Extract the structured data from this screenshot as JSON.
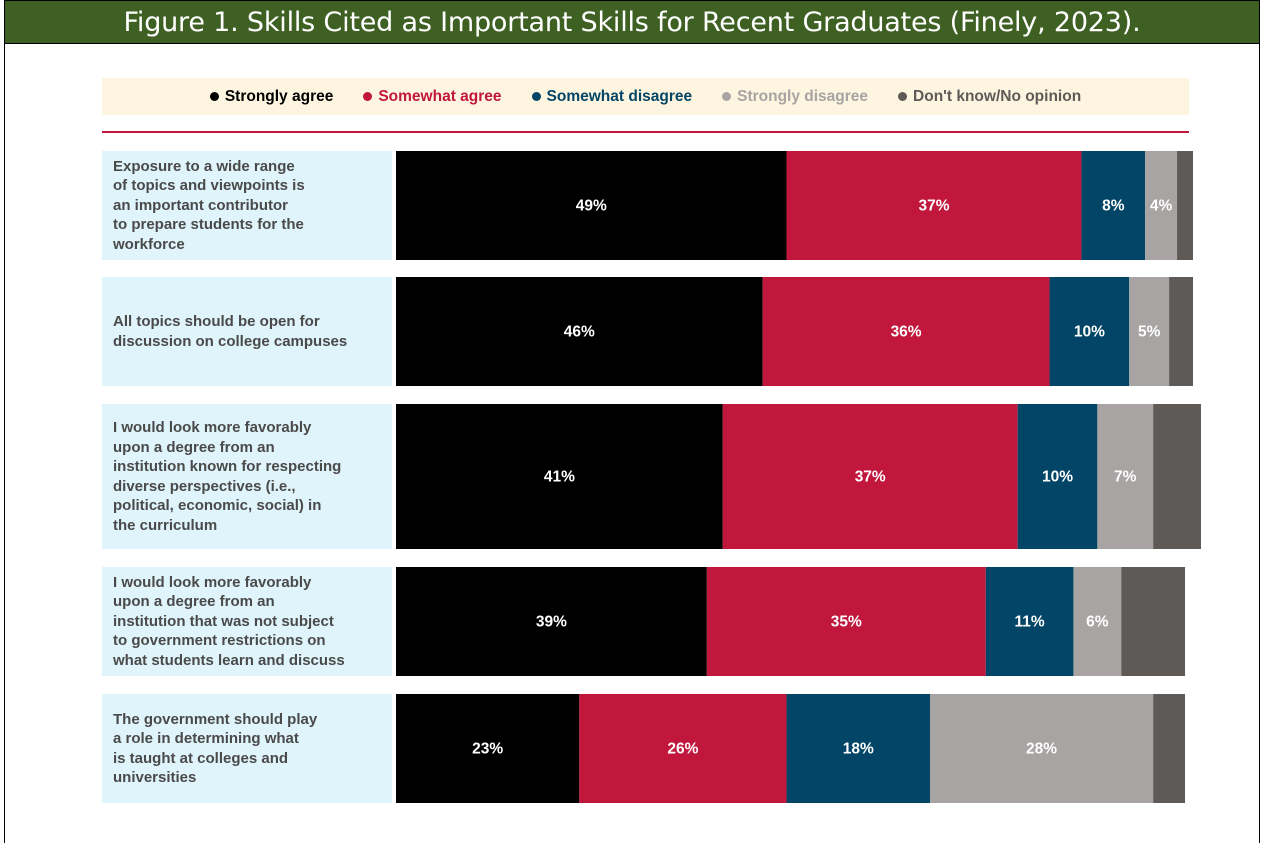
{
  "figure_title": "Figure 1.  Skills Cited as Important Skills for Recent Graduates (Finely, 2023).",
  "chart_data": {
    "type": "bar",
    "orientation": "horizontal",
    "stacked": true,
    "legend_placement": "top",
    "xlim": [
      0,
      100
    ],
    "categories": [
      "Exposure to a wide range of topics and viewpoints is an important contributor to prepare students for the workforce",
      "All topics should be open for discussion on college campuses",
      "I would look more favorably upon a degree from an institution known for respecting diverse perspectives (i.e., political, economic, social) in the curriculum",
      "I would look more favorably upon a degree from an institution that was not subject to government restrictions on what students learn and discuss",
      "The government should play a role in determining what is taught at colleges and universities"
    ],
    "category_lines": [
      [
        "Exposure to a wide range",
        "of topics and viewpoints is",
        "an important contributor",
        "to prepare students for the",
        "workforce"
      ],
      [
        "All topics should be open for",
        "discussion on college campuses"
      ],
      [
        "I would look more favorably",
        "upon a degree from an",
        "institution known for respecting",
        "diverse perspectives (i.e.,",
        "political, economic, social) in",
        "the curriculum"
      ],
      [
        "I would look more favorably",
        "upon a degree from an",
        "institution that was not subject",
        "to government restrictions on",
        "what students learn and discuss"
      ],
      [
        "The government should play",
        "a role in determining what",
        "is taught at colleges and",
        "universities"
      ]
    ],
    "series": [
      {
        "name": "Strongly agree",
        "color": "#000000",
        "label_color": "#ffffff",
        "values": [
          49,
          46,
          41,
          39,
          23
        ],
        "labels": [
          "49%",
          "46%",
          "41%",
          "39%",
          "23%"
        ]
      },
      {
        "name": "Somewhat agree",
        "color": "#c1173d",
        "label_color": "#ffffff",
        "values": [
          37,
          36,
          37,
          35,
          26
        ],
        "labels": [
          "37%",
          "36%",
          "37%",
          "35%",
          "26%"
        ]
      },
      {
        "name": "Somewhat disagree",
        "color": "#034566",
        "label_color": "#ffffff",
        "values": [
          8,
          10,
          10,
          11,
          18
        ],
        "labels": [
          "8%",
          "10%",
          "10%",
          "11%",
          "18%"
        ]
      },
      {
        "name": "Strongly disagree",
        "color": "#a7a4a3",
        "label_color": "#ffffff",
        "values": [
          4,
          5,
          7,
          6,
          28
        ],
        "labels": [
          "4%",
          "5%",
          "7%",
          "6%",
          "28%"
        ]
      },
      {
        "name": "Don't know/No opinion",
        "color": "#5e5a58",
        "label_color": "#ffffff",
        "values": [
          2,
          3,
          6,
          8,
          4
        ],
        "labels": [
          "",
          "",
          "",
          "",
          ""
        ]
      }
    ],
    "legend_text_colors": [
      "#000000",
      "#c1173d",
      "#034566",
      "#a7a4a3",
      "#5e5a58"
    ]
  }
}
